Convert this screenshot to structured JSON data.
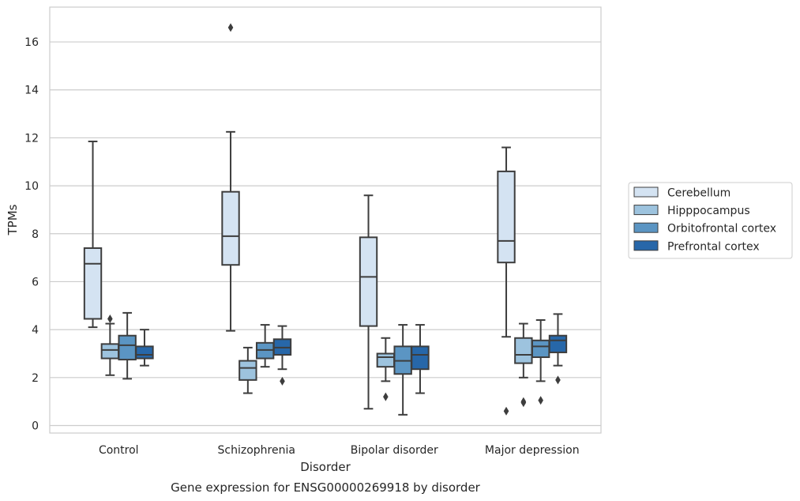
{
  "chart_data": {
    "type": "box",
    "title": "",
    "caption": "Gene expression for ENSG00000269918 by disorder",
    "xlabel": "Disorder",
    "ylabel": "TPMs",
    "ylim": [
      -0.3,
      17.4
    ],
    "yticks": [
      0,
      2,
      4,
      6,
      8,
      10,
      12,
      14,
      16
    ],
    "grid": "horizontal",
    "legend_position": "right",
    "categories": [
      "Control",
      "Schizophrenia",
      "Bipolar disorder",
      "Major depression"
    ],
    "series": [
      {
        "name": "Cerebellum",
        "color": "#d4e3f2",
        "boxes": [
          {
            "whisker_low": 4.1,
            "q1": 4.45,
            "median": 6.75,
            "q3": 7.4,
            "whisker_high": 11.85,
            "outliers": []
          },
          {
            "whisker_low": 3.95,
            "q1": 6.7,
            "median": 7.9,
            "q3": 9.75,
            "whisker_high": 12.25,
            "outliers": [
              16.6
            ]
          },
          {
            "whisker_low": 0.7,
            "q1": 4.15,
            "median": 6.2,
            "q3": 7.85,
            "whisker_high": 9.6,
            "outliers": []
          },
          {
            "whisker_low": 3.7,
            "q1": 6.8,
            "median": 7.7,
            "q3": 10.6,
            "whisker_high": 11.6,
            "outliers": [
              0.6
            ]
          }
        ]
      },
      {
        "name": "Hipppocampus",
        "color": "#9dc3de",
        "boxes": [
          {
            "whisker_low": 2.1,
            "q1": 2.8,
            "median": 3.15,
            "q3": 3.4,
            "whisker_high": 4.25,
            "outliers": [
              4.45
            ]
          },
          {
            "whisker_low": 1.35,
            "q1": 1.9,
            "median": 2.4,
            "q3": 2.7,
            "whisker_high": 3.25,
            "outliers": []
          },
          {
            "whisker_low": 1.85,
            "q1": 2.45,
            "median": 2.85,
            "q3": 3.0,
            "whisker_high": 3.65,
            "outliers": [
              1.2
            ]
          },
          {
            "whisker_low": 2.0,
            "q1": 2.6,
            "median": 2.95,
            "q3": 3.65,
            "whisker_high": 4.25,
            "outliers": [
              1.0,
              0.95
            ]
          }
        ]
      },
      {
        "name": "Orbitofrontal cortex",
        "color": "#5b95c3",
        "boxes": [
          {
            "whisker_low": 1.95,
            "q1": 2.75,
            "median": 3.35,
            "q3": 3.75,
            "whisker_high": 4.7,
            "outliers": []
          },
          {
            "whisker_low": 2.45,
            "q1": 2.8,
            "median": 3.15,
            "q3": 3.45,
            "whisker_high": 4.2,
            "outliers": []
          },
          {
            "whisker_low": 0.45,
            "q1": 2.15,
            "median": 2.7,
            "q3": 3.3,
            "whisker_high": 4.2,
            "outliers": []
          },
          {
            "whisker_low": 1.85,
            "q1": 2.85,
            "median": 3.3,
            "q3": 3.55,
            "whisker_high": 4.4,
            "outliers": [
              1.05
            ]
          }
        ]
      },
      {
        "name": "Prefrontal cortex",
        "color": "#2767a9",
        "boxes": [
          {
            "whisker_low": 2.5,
            "q1": 2.8,
            "median": 2.95,
            "q3": 3.3,
            "whisker_high": 4.0,
            "outliers": []
          },
          {
            "whisker_low": 2.35,
            "q1": 2.95,
            "median": 3.25,
            "q3": 3.6,
            "whisker_high": 4.15,
            "outliers": [
              1.85
            ]
          },
          {
            "whisker_low": 1.35,
            "q1": 2.35,
            "median": 2.95,
            "q3": 3.3,
            "whisker_high": 4.2,
            "outliers": []
          },
          {
            "whisker_low": 2.5,
            "q1": 3.05,
            "median": 3.55,
            "q3": 3.75,
            "whisker_high": 4.65,
            "outliers": [
              1.9
            ]
          }
        ]
      }
    ]
  }
}
